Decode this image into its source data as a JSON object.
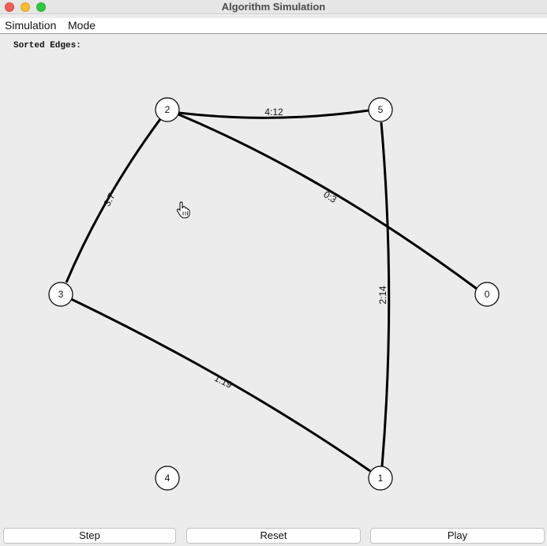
{
  "window": {
    "title": "Algorithm Simulation"
  },
  "menu": {
    "items": [
      "Simulation",
      "Mode"
    ]
  },
  "panel": {
    "sorted_label": "Sorted Edges:"
  },
  "graph": {
    "nodes": [
      "0",
      "1",
      "2",
      "3",
      "4",
      "5"
    ],
    "edges": [
      {
        "from": "2",
        "to": "5",
        "label": "4:12"
      },
      {
        "from": "2",
        "to": "0",
        "label": "0:3"
      },
      {
        "from": "2",
        "to": "3",
        "label": "3:7"
      },
      {
        "from": "5",
        "to": "1",
        "label": "2:14"
      },
      {
        "from": "3",
        "to": "1",
        "label": "1:19"
      }
    ]
  },
  "buttons": {
    "step": "Step",
    "reset": "Reset",
    "play": "Play"
  },
  "colors": {
    "close": "#ee5f57",
    "minimize": "#f5bd2f",
    "maximize": "#2fc840",
    "edge": "#000000",
    "background": "#ececec"
  }
}
